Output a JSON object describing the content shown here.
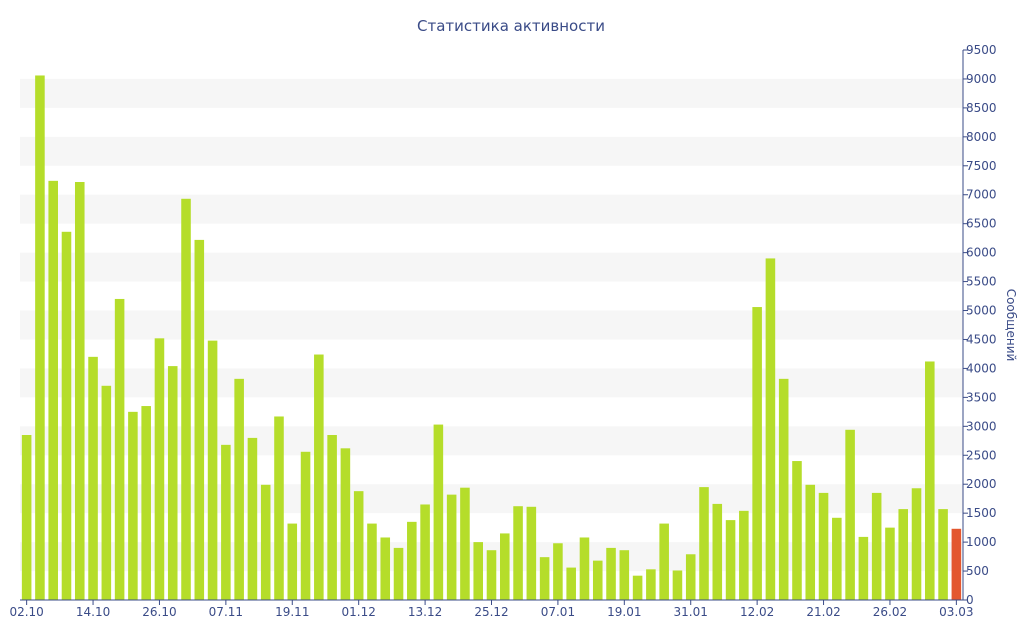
{
  "chart_data": {
    "type": "bar",
    "title": "Статистика активности",
    "ylabel": "Сообщений",
    "xlabel": "",
    "ylim": [
      0,
      9500
    ],
    "y_ticks": [
      0,
      500,
      1000,
      1500,
      2000,
      2500,
      3000,
      3500,
      4000,
      4500,
      5000,
      5500,
      6000,
      6500,
      7000,
      7500,
      8000,
      8500,
      9000,
      9500
    ],
    "y_axis_position": "right",
    "grid": "alternating horizontal bands",
    "x_tick_labels": [
      {
        "label": "02.10",
        "index": 0
      },
      {
        "label": "14.10",
        "index": 5
      },
      {
        "label": "26.10",
        "index": 10
      },
      {
        "label": "07.11",
        "index": 15
      },
      {
        "label": "19.11",
        "index": 20
      },
      {
        "label": "01.12",
        "index": 25
      },
      {
        "label": "13.12",
        "index": 30
      },
      {
        "label": "25.12",
        "index": 35
      },
      {
        "label": "07.01",
        "index": 40
      },
      {
        "label": "19.01",
        "index": 45
      },
      {
        "label": "31.01",
        "index": 50
      },
      {
        "label": "12.02",
        "index": 55
      },
      {
        "label": "21.02",
        "index": 60
      },
      {
        "label": "26.02",
        "index": 65
      },
      {
        "label": "03.03",
        "index": 70
      }
    ],
    "values": [
      2850,
      9060,
      7240,
      6360,
      7220,
      4200,
      3700,
      5200,
      3250,
      3350,
      4520,
      4040,
      6930,
      6220,
      4480,
      2680,
      3820,
      2800,
      1990,
      3170,
      1320,
      2560,
      4240,
      2850,
      2620,
      1880,
      1320,
      1080,
      900,
      1350,
      1650,
      3030,
      1820,
      1940,
      1000,
      860,
      1150,
      1620,
      1610,
      740,
      980,
      560,
      1080,
      680,
      900,
      860,
      420,
      530,
      1320,
      510,
      790,
      1950,
      1660,
      1380,
      1540,
      5060,
      5900,
      3820,
      2400,
      1990,
      1850,
      1420,
      2940,
      1090,
      1850,
      1250,
      1570,
      1930,
      4120,
      1570,
      1230
    ],
    "highlight_last": true,
    "colors": {
      "bar": "#b5dd2a",
      "bar_current": "#e3572f",
      "band": "#f6f6f6",
      "text": "#3a4b87"
    }
  }
}
